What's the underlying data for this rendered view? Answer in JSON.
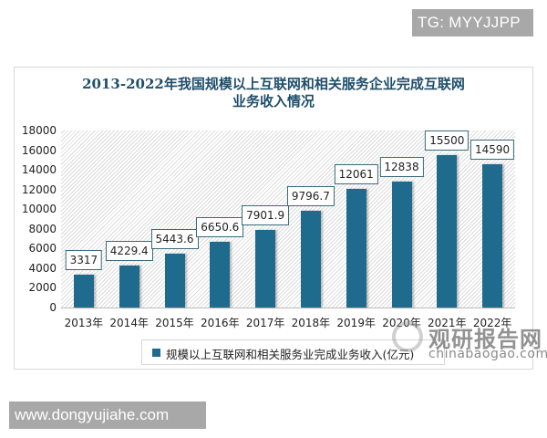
{
  "overlay": {
    "top_tag": "TG: MYYJJPP",
    "bottom_tag": "www.dongyujiahe.com"
  },
  "watermark": {
    "main": "观研报告网",
    "sub": "chinabaogao.com"
  },
  "colors": {
    "bar": "#1f6b8e",
    "title": "#1f4e6b",
    "label_border": "#3a6a7a"
  },
  "chart_data": {
    "type": "bar",
    "title": "2013-2022年我国规模以上互联网和相关服务企业完成互联网业务收入情况",
    "title_lines": [
      "2013-2022年我国规模以上互联网和相关服务企业完成互联网",
      "业务收入情况"
    ],
    "categories": [
      "2013年",
      "2014年",
      "2015年",
      "2016年",
      "2017年",
      "2018年",
      "2019年",
      "2020年",
      "2021年",
      "2022年"
    ],
    "series": [
      {
        "name": "规模以上互联网和相关服务业完成业务收入(亿元)",
        "values": [
          3317,
          4229.4,
          5443.6,
          6650.6,
          7901.9,
          9796.7,
          12061,
          12838,
          15500,
          14590
        ],
        "labels": [
          "3317",
          "4229.4",
          "5443.6",
          "6650.6",
          "7901.9",
          "9796.7",
          "12061",
          "12838",
          "15500",
          "14590"
        ]
      }
    ],
    "xlabel": "",
    "ylabel": "",
    "ylim": [
      0,
      18000
    ],
    "yticks": [
      "18000",
      "16000",
      "14000",
      "12000",
      "10000",
      "8000",
      "6000",
      "4000",
      "2000",
      "0"
    ],
    "legend_position": "bottom",
    "grid": false
  }
}
